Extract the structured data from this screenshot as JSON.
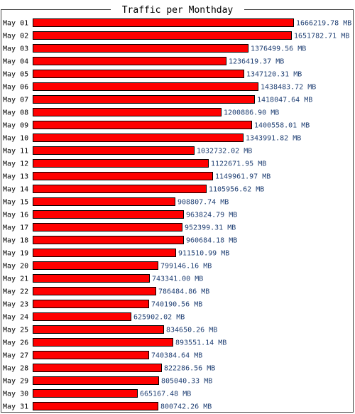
{
  "chart_data": {
    "type": "bar",
    "orientation": "horizontal",
    "title": "Traffic per Monthday",
    "unit": "MB",
    "categories": [
      "May 01",
      "May 02",
      "May 03",
      "May 04",
      "May 05",
      "May 06",
      "May 07",
      "May 08",
      "May 09",
      "May 10",
      "May 11",
      "May 12",
      "May 13",
      "May 14",
      "May 15",
      "May 16",
      "May 17",
      "May 18",
      "May 19",
      "May 20",
      "May 21",
      "May 22",
      "May 23",
      "May 24",
      "May 25",
      "May 26",
      "May 27",
      "May 28",
      "May 29",
      "May 30",
      "May 31"
    ],
    "values": [
      1666219.78,
      1651782.71,
      1376499.56,
      1236419.37,
      1347120.31,
      1438483.72,
      1418047.64,
      1200886.9,
      1400558.01,
      1343991.82,
      1032732.02,
      1122671.95,
      1149961.97,
      1105956.62,
      908807.74,
      963824.79,
      952399.31,
      960684.18,
      911510.99,
      799146.16,
      743341.0,
      786484.86,
      740190.56,
      625902.02,
      834650.26,
      893551.14,
      740384.64,
      822286.56,
      805040.33,
      665167.48,
      800742.26
    ],
    "value_labels": [
      "1666219.78 MB",
      "1651782.71 MB",
      "1376499.56 MB",
      "1236419.37 MB",
      "1347120.31 MB",
      "1438483.72 MB",
      "1418047.64 MB",
      "1200886.90 MB",
      "1400558.01 MB",
      "1343991.82 MB",
      "1032732.02 MB",
      "1122671.95 MB",
      "1149961.97 MB",
      "1105956.62 MB",
      "908807.74 MB",
      "963824.79 MB",
      "952399.31 MB",
      "960684.18 MB",
      "911510.99 MB",
      "799146.16 MB",
      "743341.00 MB",
      "786484.86 MB",
      "740190.56 MB",
      "625902.02 MB",
      "834650.26 MB",
      "893551.14 MB",
      "740384.64 MB",
      "822286.56 MB",
      "805040.33 MB",
      "665167.48 MB",
      "800742.26 MB"
    ],
    "xlim": [
      0,
      1666219.78
    ],
    "grid": false,
    "colors": {
      "bar_fill": "#ff0000",
      "bar_stroke": "#000000",
      "value_text": "#1f3f73",
      "frame": "#444444",
      "title_text": "#000000"
    }
  }
}
